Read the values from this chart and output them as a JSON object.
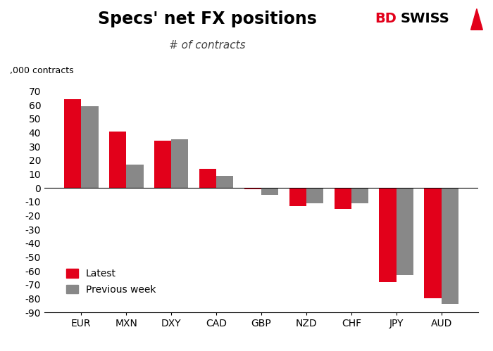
{
  "title": "Specs' net FX positions",
  "subtitle": "# of contracts",
  "ylabel": ",000 contracts",
  "categories": [
    "EUR",
    "MXN",
    "DXY",
    "CAD",
    "GBP",
    "NZD",
    "CHF",
    "JPY",
    "AUD"
  ],
  "latest": [
    64,
    41,
    34,
    14,
    -1,
    -13,
    -15,
    -68,
    -80
  ],
  "previous_week": [
    59,
    17,
    35,
    9,
    -5,
    -11,
    -11,
    -63,
    -84
  ],
  "latest_color": "#e2001a",
  "previous_color": "#888888",
  "ylim": [
    -90,
    75
  ],
  "yticks": [
    -90,
    -80,
    -70,
    -60,
    -50,
    -40,
    -30,
    -20,
    -10,
    0,
    10,
    20,
    30,
    40,
    50,
    60,
    70
  ],
  "bar_width": 0.38,
  "background_color": "#ffffff",
  "legend_labels": [
    "Latest",
    "Previous week"
  ],
  "title_fontsize": 17,
  "subtitle_fontsize": 11,
  "axis_fontsize": 9,
  "tick_fontsize": 10,
  "bdswiss_fontsize": 14
}
